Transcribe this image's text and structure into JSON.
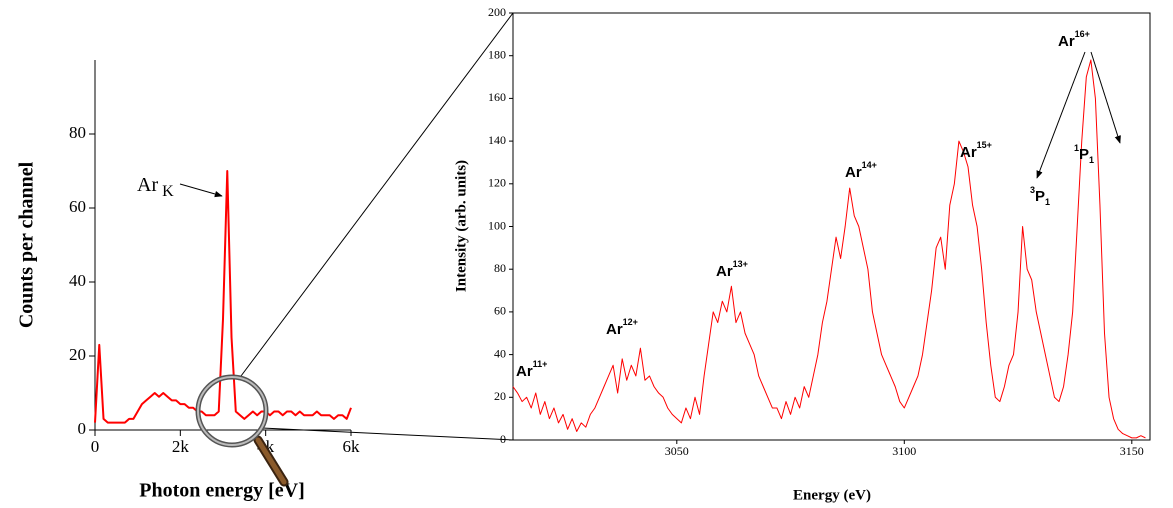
{
  "chart_data": [
    {
      "type": "line",
      "x_label": "Photon energy [eV]",
      "y_label": "Counts per channel",
      "x": [
        0,
        100,
        200,
        300,
        400,
        500,
        600,
        700,
        800,
        900,
        1000,
        1100,
        1200,
        1300,
        1400,
        1500,
        1600,
        1700,
        1800,
        1900,
        2000,
        2100,
        2200,
        2300,
        2400,
        2500,
        2600,
        2700,
        2800,
        2900,
        3000,
        3100,
        3200,
        3300,
        3400,
        3500,
        3600,
        3700,
        3800,
        3900,
        4000,
        4100,
        4200,
        4300,
        4400,
        4500,
        4600,
        4700,
        4800,
        4900,
        5000,
        5100,
        5200,
        5300,
        5400,
        5500,
        5600,
        5700,
        5800,
        5900,
        6000
      ],
      "series": [
        {
          "color": "#ff0000",
          "values": [
            2,
            23,
            3,
            2,
            2,
            2,
            2,
            2,
            3,
            3,
            5,
            7,
            8,
            9,
            10,
            9,
            10,
            9,
            8,
            8,
            7,
            7,
            6,
            6,
            5,
            5,
            4,
            4,
            4,
            5,
            30,
            70,
            25,
            5,
            4,
            3,
            4,
            5,
            4,
            5,
            5,
            4,
            5,
            5,
            4,
            5,
            5,
            4,
            5,
            4,
            4,
            4,
            5,
            4,
            4,
            4,
            3,
            4,
            4,
            3,
            6
          ]
        }
      ],
      "xlim": [
        0,
        6000
      ],
      "ylim": [
        0,
        100
      ],
      "xticks": [
        0,
        {
          "value": 2000,
          "label": "2k"
        },
        {
          "value": 4000,
          "label": "4k"
        },
        {
          "value": 6000,
          "label": "6k"
        }
      ],
      "yticks": [
        0,
        20,
        40,
        60,
        80
      ],
      "annotations": [
        {
          "text": "Ar",
          "sub": "K"
        }
      ]
    },
    {
      "type": "line",
      "x_label": "Energy (eV)",
      "y_label": "Intensity (arb. units)",
      "x": [
        3014,
        3015,
        3016,
        3017,
        3018,
        3019,
        3020,
        3021,
        3022,
        3023,
        3024,
        3025,
        3026,
        3027,
        3028,
        3029,
        3030,
        3031,
        3032,
        3033,
        3034,
        3035,
        3036,
        3037,
        3038,
        3039,
        3040,
        3041,
        3042,
        3043,
        3044,
        3045,
        3046,
        3047,
        3048,
        3049,
        3050,
        3051,
        3052,
        3053,
        3054,
        3055,
        3056,
        3057,
        3058,
        3059,
        3060,
        3061,
        3062,
        3063,
        3064,
        3065,
        3066,
        3067,
        3068,
        3069,
        3070,
        3071,
        3072,
        3073,
        3074,
        3075,
        3076,
        3077,
        3078,
        3079,
        3080,
        3081,
        3082,
        3083,
        3084,
        3085,
        3086,
        3087,
        3088,
        3089,
        3090,
        3091,
        3092,
        3093,
        3094,
        3095,
        3096,
        3097,
        3098,
        3099,
        3100,
        3101,
        3102,
        3103,
        3104,
        3105,
        3106,
        3107,
        3108,
        3109,
        3110,
        3111,
        3112,
        3113,
        3114,
        3115,
        3116,
        3117,
        3118,
        3119,
        3120,
        3121,
        3122,
        3123,
        3124,
        3125,
        3126,
        3127,
        3128,
        3129,
        3130,
        3131,
        3132,
        3133,
        3134,
        3135,
        3136,
        3137,
        3138,
        3139,
        3140,
        3141,
        3142,
        3143,
        3144,
        3145,
        3146,
        3147,
        3148,
        3149,
        3150,
        3151,
        3152,
        3153
      ],
      "series": [
        {
          "color": "#ff0000",
          "values": [
            25,
            22,
            18,
            20,
            15,
            22,
            12,
            18,
            10,
            15,
            8,
            12,
            5,
            10,
            4,
            8,
            6,
            12,
            15,
            20,
            25,
            30,
            35,
            22,
            38,
            28,
            35,
            30,
            43,
            28,
            30,
            25,
            22,
            20,
            15,
            12,
            10,
            8,
            15,
            10,
            20,
            12,
            30,
            45,
            60,
            55,
            65,
            60,
            72,
            55,
            60,
            50,
            45,
            40,
            30,
            25,
            20,
            15,
            15,
            10,
            18,
            12,
            20,
            15,
            25,
            20,
            30,
            40,
            55,
            65,
            80,
            95,
            85,
            100,
            118,
            105,
            100,
            90,
            80,
            60,
            50,
            40,
            35,
            30,
            25,
            18,
            15,
            20,
            25,
            30,
            40,
            55,
            70,
            90,
            95,
            80,
            110,
            120,
            140,
            135,
            128,
            110,
            100,
            80,
            55,
            35,
            20,
            18,
            25,
            35,
            40,
            60,
            100,
            80,
            75,
            60,
            50,
            40,
            30,
            20,
            18,
            25,
            40,
            60,
            100,
            140,
            170,
            178,
            160,
            110,
            50,
            20,
            10,
            5,
            3,
            2,
            1,
            1,
            2,
            1
          ]
        }
      ],
      "xlim": [
        3014,
        3154
      ],
      "ylim": [
        0,
        200
      ],
      "xticks": [
        3050,
        3100,
        3150
      ],
      "yticks": [
        0,
        20,
        40,
        60,
        80,
        100,
        120,
        140,
        160,
        180,
        200
      ],
      "annotations": [
        {
          "text": "Ar",
          "sup": "11+"
        },
        {
          "text": "Ar",
          "sup": "12+"
        },
        {
          "text": "Ar",
          "sup": "13+"
        },
        {
          "text": "Ar",
          "sup": "14+"
        },
        {
          "text": "Ar",
          "sup": "15+"
        },
        {
          "text": "Ar",
          "sup": "16+"
        },
        {
          "pre": "3",
          "text": "P",
          "sub": "1"
        },
        {
          "pre": "1",
          "text": "P",
          "sub": "1"
        }
      ]
    }
  ]
}
